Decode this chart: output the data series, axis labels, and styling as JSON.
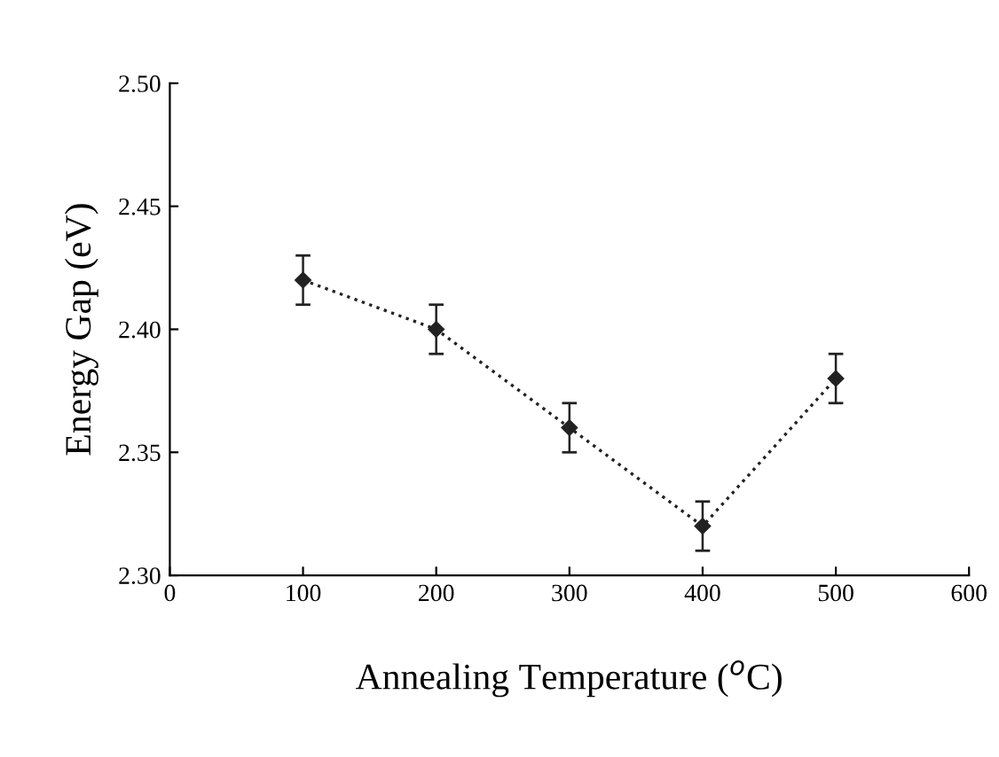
{
  "chart_data": {
    "type": "line",
    "xlabel": "Annealing Temperature ($^{o}$C)",
    "ylabel": "Energy Gap (eV)",
    "x": [
      100,
      200,
      300,
      400,
      500
    ],
    "series": [
      {
        "color": "#222222",
        "values": [
          2.42,
          2.4,
          2.36,
          2.32,
          2.38
        ],
        "errors": [
          0.01,
          0.01,
          0.01,
          0.01,
          0.01
        ]
      }
    ],
    "xlim": [
      0,
      600
    ],
    "xticks": [
      0,
      100,
      200,
      300,
      400,
      500,
      600
    ],
    "ylim": [
      2.3,
      2.5
    ],
    "yticks": [
      {
        "value": 2.3,
        "label": "2.30"
      },
      {
        "value": 2.35,
        "label": "2.35"
      },
      {
        "value": 2.4,
        "label": "2.40"
      },
      {
        "value": 2.45,
        "label": "2.45"
      },
      {
        "value": 2.5,
        "label": "2.50"
      }
    ],
    "grid": false,
    "legend": false,
    "marker": "diamond",
    "line_style": "dotted"
  }
}
